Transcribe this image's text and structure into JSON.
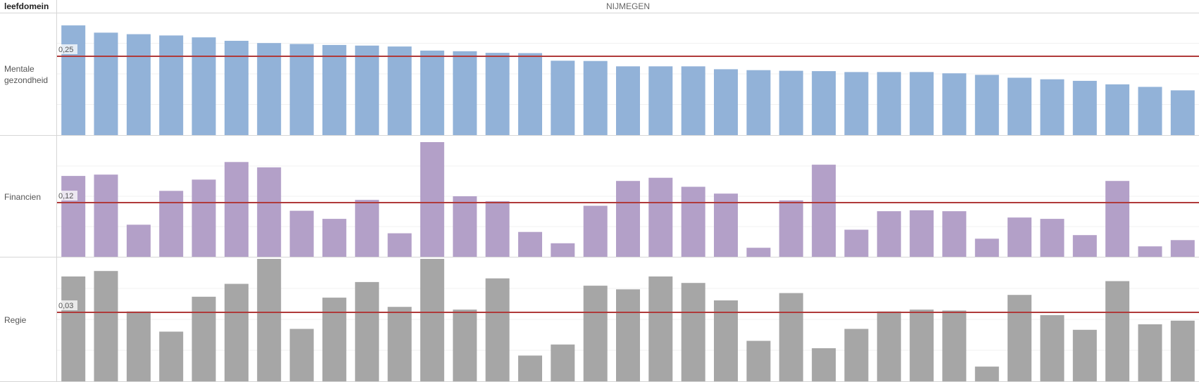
{
  "header": {
    "dimension_label": "leefdomein",
    "column_title": "NIJMEGEN"
  },
  "chart_data": {
    "type": "bar",
    "title": "",
    "bar_count": 35,
    "panels": [
      {
        "name": "Mentale gezondheid",
        "label_lines": [
          "Mentale",
          "gezondheid"
        ],
        "color": "#92b2d8",
        "reference_value": 0.25,
        "reference_label": "0,25",
        "values": [
          0.348,
          0.325,
          0.32,
          0.316,
          0.31,
          0.299,
          0.292,
          0.289,
          0.286,
          0.284,
          0.281,
          0.268,
          0.266,
          0.261,
          0.26,
          0.236,
          0.235,
          0.218,
          0.218,
          0.218,
          0.209,
          0.206,
          0.204,
          0.203,
          0.2,
          0.2,
          0.2,
          0.196,
          0.191,
          0.182,
          0.177,
          0.172,
          0.161,
          0.153,
          0.142
        ]
      },
      {
        "name": "Financien",
        "label_lines": [
          "Financien"
        ],
        "color": "#b3a0c8",
        "reference_value": 0.12,
        "reference_label": "0,12",
        "values": [
          0.179,
          0.182,
          0.071,
          0.146,
          0.171,
          0.21,
          0.198,
          0.102,
          0.084,
          0.126,
          0.052,
          0.254,
          0.134,
          0.123,
          0.055,
          0.03,
          0.113,
          0.168,
          0.175,
          0.155,
          0.14,
          0.02,
          0.125,
          0.204,
          0.06,
          0.101,
          0.103,
          0.101,
          0.04,
          0.087,
          0.084,
          0.048,
          0.168,
          0.023,
          0.037
        ]
      },
      {
        "name": "Regie",
        "label_lines": [
          "Regie"
        ],
        "color": "#a6a6a6",
        "reference_value": 0.03,
        "reference_label": "0,03",
        "values": [
          0.0456,
          0.048,
          0.0304,
          0.0216,
          0.0368,
          0.0424,
          0.06,
          0.0228,
          0.0364,
          0.0432,
          0.0324,
          0.058,
          0.0312,
          0.0448,
          0.0112,
          0.016,
          0.0416,
          0.04,
          0.0456,
          0.0428,
          0.0352,
          0.0176,
          0.0384,
          0.0144,
          0.0228,
          0.0304,
          0.0312,
          0.0308,
          0.0064,
          0.0376,
          0.0288,
          0.0224,
          0.0436,
          0.0248,
          0.0264
        ]
      }
    ],
    "reference_line_color": "#b03a3a"
  }
}
